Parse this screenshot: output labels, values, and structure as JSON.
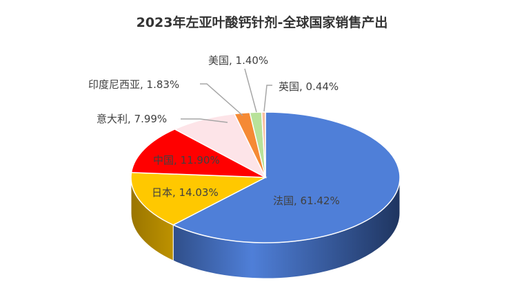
{
  "chart_data": {
    "type": "pie",
    "style": "3d",
    "title": "2023年左亚叶酸钙针剂-全球国家销售产出",
    "categories": [
      "法国",
      "日本",
      "中国",
      "意大利",
      "印度尼西亚",
      "美国",
      "英国"
    ],
    "values": [
      61.42,
      14.03,
      11.9,
      7.99,
      1.83,
      1.4,
      0.44
    ],
    "labels": [
      "法国, 61.42%",
      "日本, 14.03%",
      "中国, 11.90%",
      "意大利, 7.99%",
      "印度尼西亚, 1.83%",
      "美国, 1.40%",
      "英国, 0.44%"
    ],
    "colors": [
      "#4f7fd8",
      "#ffc800",
      "#ff0000",
      "#fde4e8",
      "#f58a35",
      "#b8e29a",
      "#f7bfa0"
    ],
    "side_colors": [
      "#1f3560",
      "#9a7500",
      "#a00000",
      "#d8b8bd",
      "#b55e1a",
      "#84b06a",
      "#c89070"
    ],
    "start": "top",
    "direction": "clockwise",
    "legend": "none"
  }
}
